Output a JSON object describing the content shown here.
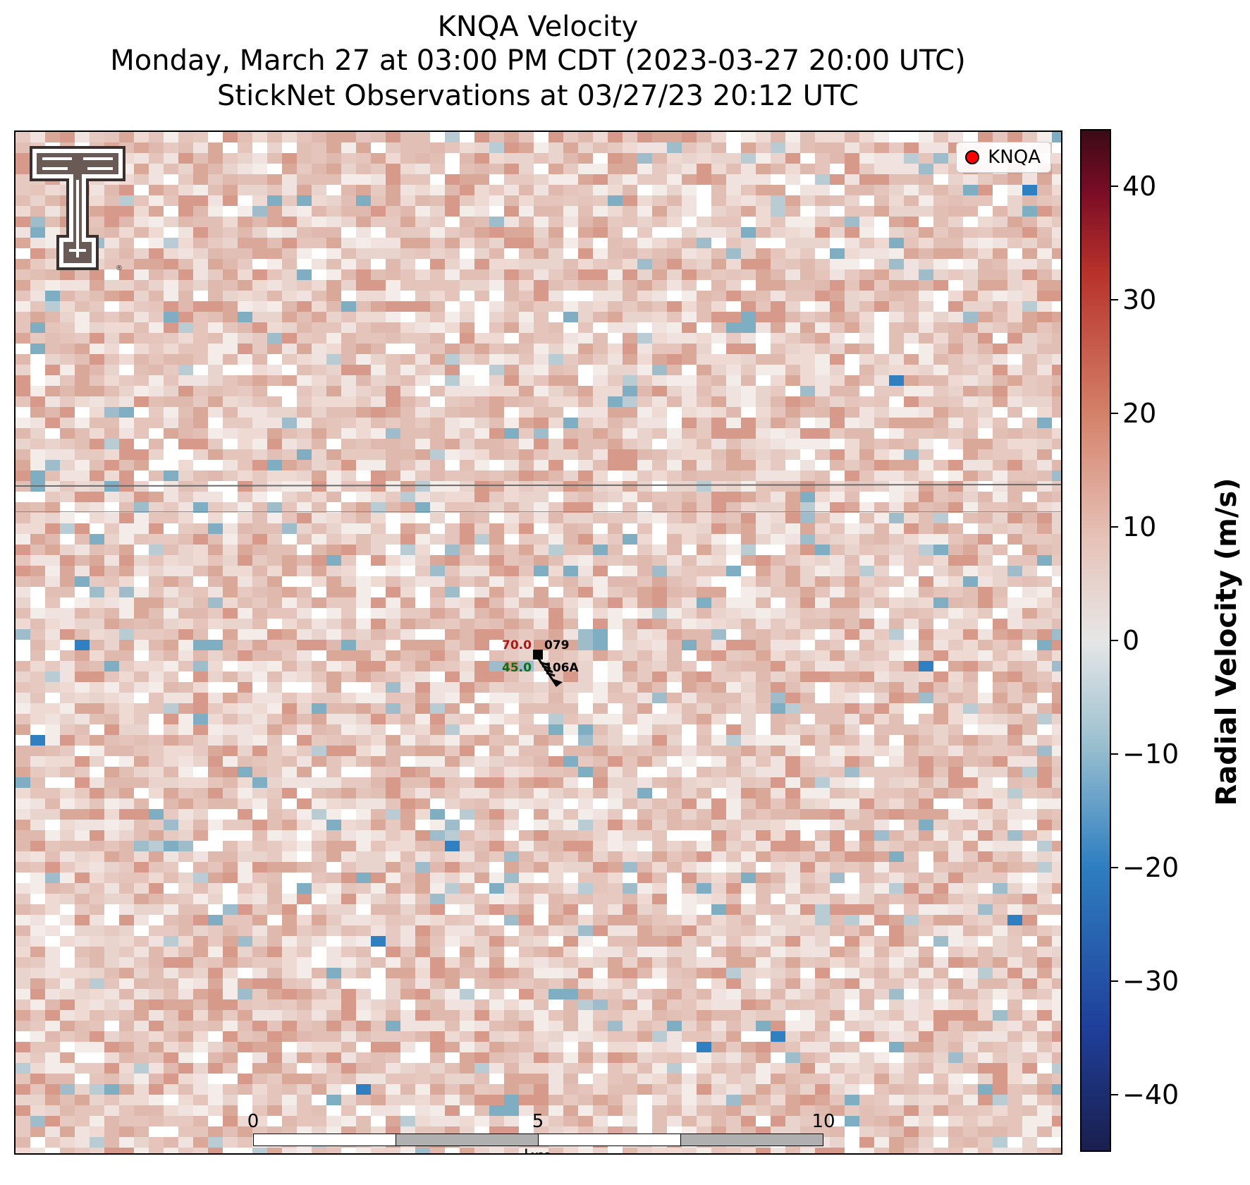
{
  "title": {
    "line1": "KNQA Velocity",
    "line2": "Monday, March 27 at 03:00 PM CDT (2023-03-27 20:00 UTC)",
    "line3": "StickNet Observations at 03/27/23 20:12 UTC"
  },
  "legend": {
    "label": "KNQA",
    "marker_color": "#ff0000"
  },
  "logo": {
    "name": "texas-tech-double-t-logo",
    "mark": "®"
  },
  "colorbar": {
    "label": "Radial Velocity (m/s)",
    "range": [
      -45,
      45
    ],
    "ticks": [
      "40",
      "30",
      "20",
      "10",
      "0",
      "−10",
      "−20",
      "−30",
      "−40"
    ],
    "tick_values": [
      40,
      30,
      20,
      10,
      0,
      -10,
      -20,
      -30,
      -40
    ]
  },
  "station": {
    "temperature": "70.0",
    "temperature_color": "#b01818",
    "pressure": "079",
    "dewpoint": "45.0",
    "dewpoint_color": "#0d6e1a",
    "id": "106A"
  },
  "scalebar": {
    "labels": [
      "0",
      "5",
      "10"
    ],
    "unit": "km"
  }
}
